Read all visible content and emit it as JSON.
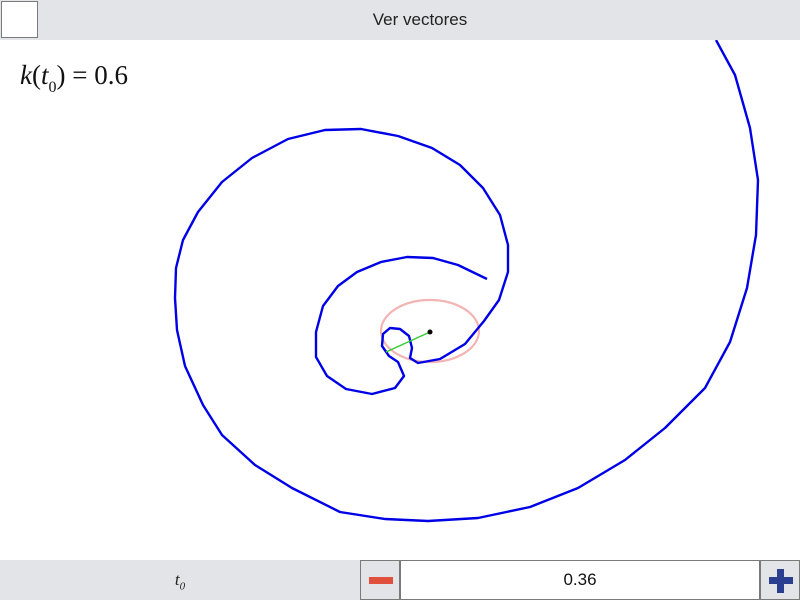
{
  "topbar": {
    "checkbox_checked": false,
    "label": "Ver vectores"
  },
  "canvas": {
    "curvature": {
      "symbol": "k",
      "param": "t",
      "param_sub": "0",
      "equals": "= ",
      "value": "0.6"
    },
    "colors": {
      "curve": "#0000e6",
      "osculating_circle": "#f4b4b4",
      "normal_vector": "#2ecc2e",
      "point": "#000000"
    }
  },
  "controls": {
    "param_label": "t",
    "param_sub": "0",
    "value": "0.36",
    "decrement_icon": "minus-icon",
    "increment_icon": "plus-icon"
  }
}
